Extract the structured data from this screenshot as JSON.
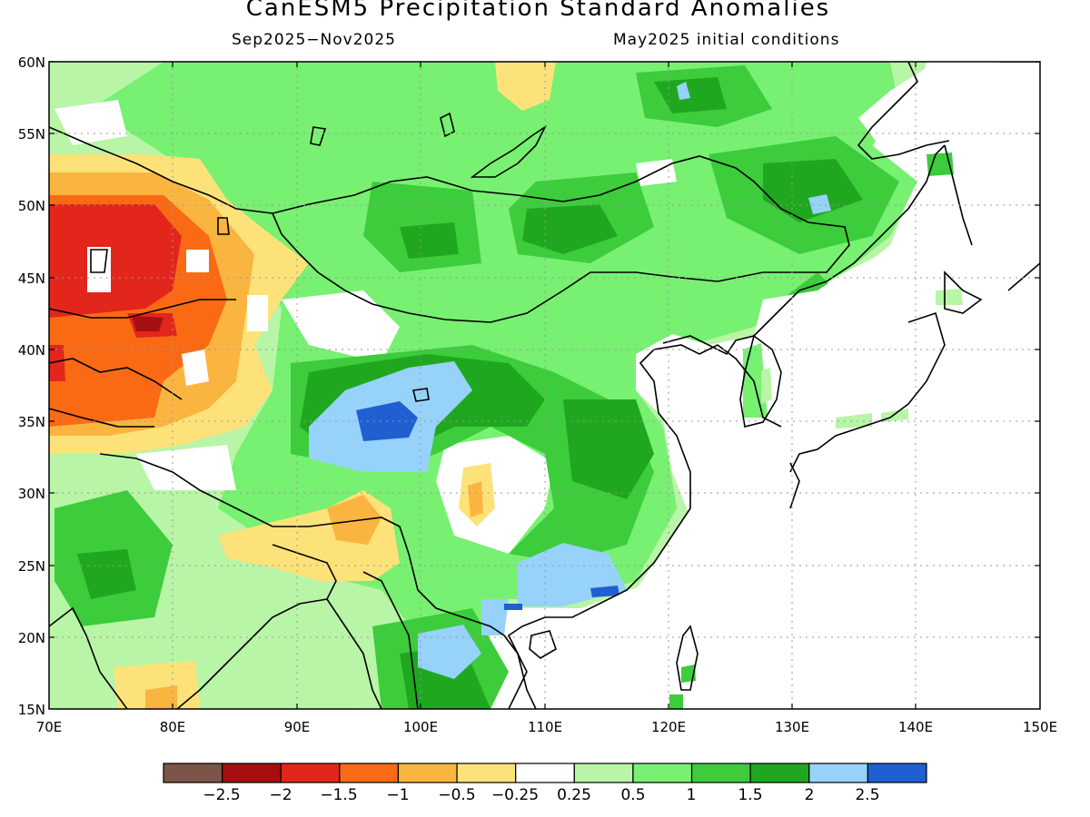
{
  "title": "CanESM5 Precipitation Standard Anomalies",
  "period": "Sep2025−Nov2025",
  "init": "May2025 initial conditions",
  "lat_labels": [
    "60N",
    "55N",
    "50N",
    "45N",
    "40N",
    "35N",
    "30N",
    "25N",
    "20N",
    "15N"
  ],
  "lon_labels": [
    "70E",
    "80E",
    "90E",
    "100E",
    "110E",
    "120E",
    "130E",
    "140E",
    "150E"
  ],
  "colorbar": {
    "colors": [
      "#7a5548",
      "#a50f0f",
      "#e3261b",
      "#fa6a14",
      "#fab540",
      "#fde27a",
      "#ffffff",
      "#b8f5a6",
      "#78f072",
      "#3ccc3c",
      "#1fa81f",
      "#96d2fa",
      "#1f5fd2"
    ],
    "labels": [
      "−2.5",
      "−2",
      "−1.5",
      "−1",
      "−0.5",
      "−0.25",
      "0.25",
      "0.5",
      "1",
      "1.5",
      "2",
      "2.5"
    ]
  }
}
